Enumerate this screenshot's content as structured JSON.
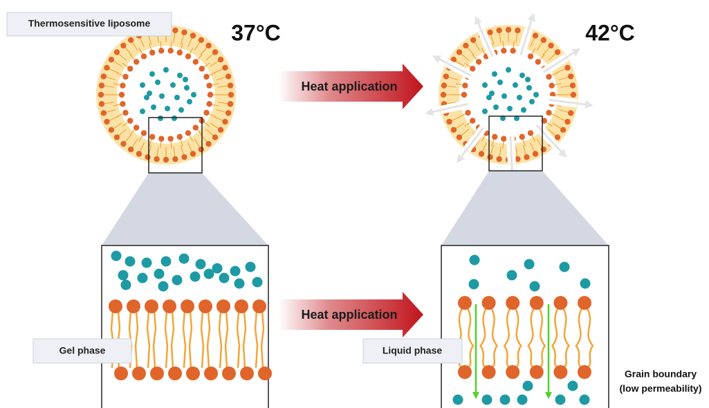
{
  "labels": {
    "title": "Thermosensitive liposome",
    "temp_left": "37°C",
    "temp_right": "42°C",
    "arrows": [
      "Heat application",
      "Heat application"
    ],
    "phases": [
      "Gel phase",
      "Liquid phase"
    ],
    "note": [
      "Grain boundary",
      "(low permeability)"
    ]
  }
}
